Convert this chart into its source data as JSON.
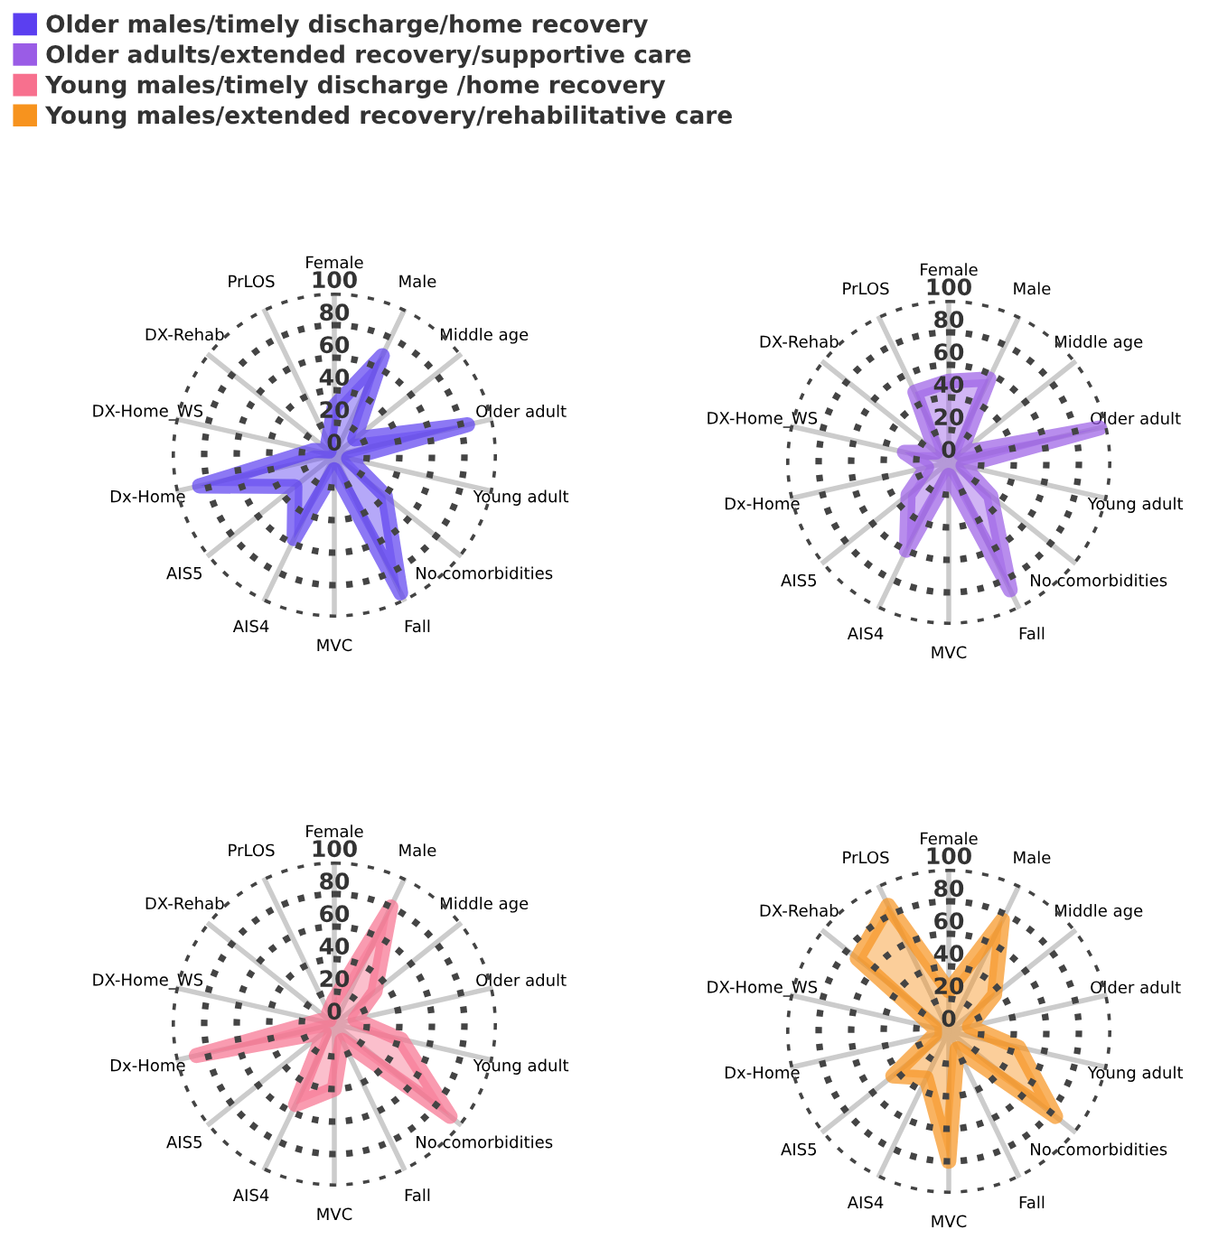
{
  "chart_data": [
    {
      "type": "radar",
      "categories": [
        "Female",
        "Male",
        "Middle age",
        "Older adult",
        "Young adult",
        "No comorbidities",
        "Fall",
        "MVC",
        "AIS4",
        "AIS5",
        "Dx-Home",
        "DX-Home_WS",
        "DX-Rehab",
        "PrLOS"
      ],
      "ylim": [
        0,
        100
      ],
      "yticks": [
        0,
        20,
        40,
        60,
        80,
        100
      ],
      "grid": true,
      "legend": "top",
      "series": [
        {
          "name": "Older males/timely discharge/home recovery",
          "color": "#5b3ff0",
          "values": [
            30,
            68,
            16,
            84,
            9,
            40,
            94,
            9,
            57,
            31,
            85,
            13,
            4,
            9
          ]
        }
      ]
    },
    {
      "type": "radar",
      "categories": [
        "Female",
        "Male",
        "Middle age",
        "Older adult",
        "Young adult",
        "No comorbidities",
        "Fall",
        "MVC",
        "AIS4",
        "AIS5",
        "Dx-Home",
        "DX-Home_WS",
        "DX-Rehab",
        "PrLOS"
      ],
      "ylim": [
        0,
        100
      ],
      "yticks": [
        0,
        20,
        40,
        60,
        80,
        100
      ],
      "grid": true,
      "series": [
        {
          "name": "Older adults/extended recovery/supportive care",
          "color": "#9a5ce6",
          "values": [
            50,
            57,
            9,
            95,
            9,
            33,
            87,
            8,
            60,
            32,
            14,
            28,
            10,
            48
          ]
        }
      ]
    },
    {
      "type": "radar",
      "categories": [
        "Female",
        "Male",
        "Middle age",
        "Older adult",
        "Young adult",
        "No comorbidities",
        "Fall",
        "MVC",
        "AIS4",
        "AIS5",
        "Dx-Home",
        "DX-Home_WS",
        "DX-Rehab",
        "PrLOS"
      ],
      "ylim": [
        0,
        100
      ],
      "yticks": [
        0,
        20,
        40,
        60,
        80,
        100
      ],
      "grid": true,
      "series": [
        {
          "name": "Young males/timely discharge /home recovery",
          "color": "#f7708e",
          "values": [
            15,
            80,
            32,
            13,
            42,
            91,
            11,
            40,
            55,
            8,
            87,
            9,
            4,
            8
          ]
        }
      ]
    },
    {
      "type": "radar",
      "categories": [
        "Female",
        "Male",
        "Middle age",
        "Older adult",
        "Young adult",
        "No comorbidities",
        "Fall",
        "MVC",
        "AIS4",
        "AIS5",
        "Dx-Home",
        "DX-Home_WS",
        "DX-Rehab",
        "PrLOS"
      ],
      "ylim": [
        0,
        100
      ],
      "yticks": [
        0,
        20,
        40,
        60,
        80,
        100
      ],
      "grid": true,
      "series": [
        {
          "name": "Young males/extended recovery/rehabilitative care",
          "color": "#f7931e",
          "values": [
            25,
            76,
            36,
            13,
            44,
            84,
            12,
            80,
            32,
            44,
            9,
            9,
            72,
            86
          ]
        }
      ]
    }
  ]
}
